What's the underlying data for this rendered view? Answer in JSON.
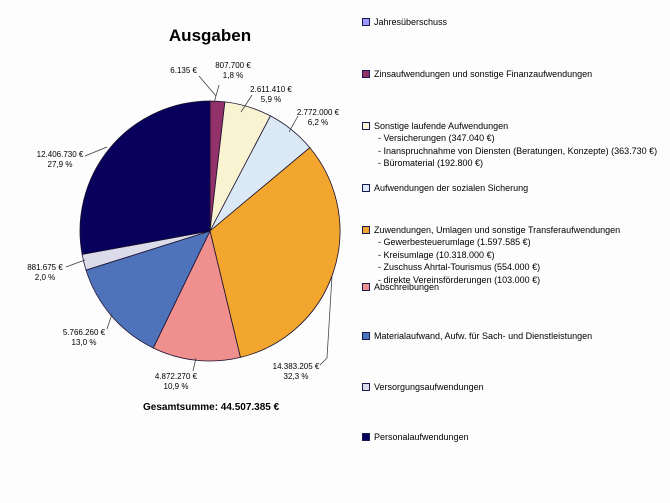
{
  "title": "Ausgaben",
  "total_label": "Gesamtsumme: 44.507.385 €",
  "chart_data": {
    "type": "pie",
    "title": "Ausgaben",
    "total_value": 44507385,
    "total_text": "Gesamtsumme: 44.507.385 €",
    "start_angle_deg": 0,
    "direction": "clockwise",
    "legend_position": "right",
    "slices": [
      {
        "name": "Jahresüberschuss",
        "value": 6135,
        "value_label": "6.135 €",
        "pct_label": "",
        "color": "#9999FF"
      },
      {
        "name": "Zinsaufwendungen und sonstige Finanzaufwendungen",
        "value": 807700,
        "value_label": "807.700 €",
        "pct_label": "1,8 %",
        "color": "#93316A"
      },
      {
        "name": "Sonstige laufende Aufwendungen",
        "value": 2611410,
        "value_label": "2.611.410 €",
        "pct_label": "5,9 %",
        "color": "#FAF3D2"
      },
      {
        "name": "Aufwendungen der sozialen Sicherung",
        "value": 2772000,
        "value_label": "2.772.000 €",
        "pct_label": "6,2 %",
        "color": "#DBE8F5"
      },
      {
        "name": "Zuwendungen, Umlagen und sonstige Transferaufwendungen",
        "value": 14383205,
        "value_label": "14.383.205 €",
        "pct_label": "32,3 %",
        "color": "#F2A62E"
      },
      {
        "name": "Abschreibungen",
        "value": 4872270,
        "value_label": "4.872.270 €",
        "pct_label": "10,9 %",
        "color": "#F0908E"
      },
      {
        "name": "Materialaufwand, Aufw. für Sach- und Dienstleistungen",
        "value": 5766260,
        "value_label": "5.766.260 €",
        "pct_label": "13,0 %",
        "color": "#4F73BA"
      },
      {
        "name": "Versorgungsaufwendungen",
        "value": 881675,
        "value_label": "881.675 €",
        "pct_label": "2,0 %",
        "color": "#DBDBEA"
      },
      {
        "name": "Personalaufwendungen",
        "value": 12406730,
        "value_label": "12.406.730 €",
        "pct_label": "27,9 %",
        "color": "#07015C"
      }
    ]
  },
  "legend": {
    "items": [
      {
        "label": "Jahresüberschuss",
        "color": "#9999FF",
        "sub": []
      },
      {
        "label": "Zinsaufwendungen und sonstige Finanzaufwendungen",
        "color": "#93316A",
        "sub": []
      },
      {
        "label": "Sonstige laufende Aufwendungen",
        "color": "#FAF3D2",
        "sub": [
          "- Versicherungen (347.040 €)",
          "- Inanspruchnahme von Diensten (Beratungen, Konzepte) (363.730 €)",
          "- Büromaterial (192.800 €)"
        ]
      },
      {
        "label": "Aufwendungen der sozialen Sicherung",
        "color": "#DBE8F5",
        "sub": []
      },
      {
        "label": "Zuwendungen, Umlagen und sonstige Transferaufwendungen",
        "color": "#F2A62E",
        "sub": [
          "- Gewerbesteuerumlage (1.597.585 €)",
          "- Kreisumlage (10.318.000 €)",
          "- Zuschuss Ahrtal-Tourismus (554.000 €)",
          "- direkte Vereinsförderungen (103.000 €)"
        ]
      },
      {
        "label": "Abschreibungen",
        "color": "#F0908E",
        "sub": []
      },
      {
        "label": "Materialaufwand, Aufw. für Sach- und Dienstleistungen",
        "color": "#4F73BA",
        "sub": []
      },
      {
        "label": "Versorgungsaufwendungen",
        "color": "#DBDBEA",
        "sub": []
      },
      {
        "label": "Personalaufwendungen",
        "color": "#07015C",
        "sub": []
      }
    ]
  }
}
